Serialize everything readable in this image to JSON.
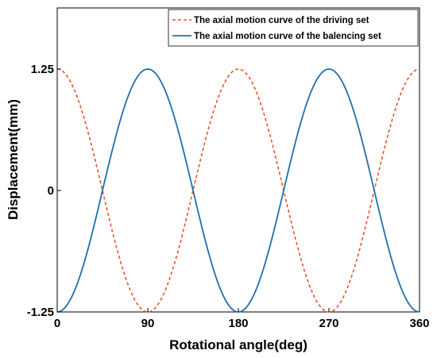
{
  "chart_data": {
    "type": "line",
    "xlabel": "Rotational angle(deg)",
    "ylabel": "Displacement(mm)",
    "xlim": [
      0,
      360
    ],
    "ylim": [
      -1.25,
      1.25
    ],
    "x_ticks": [
      "0",
      "90",
      "180",
      "270",
      "360"
    ],
    "y_ticks": [
      "-1.25",
      "0",
      "1.25"
    ],
    "legend_position": "top-right",
    "grid": false,
    "series": [
      {
        "name": "The axial motion curve of the driving set",
        "color": "#e8572a",
        "style": "dashed",
        "x": [
          0,
          45,
          90,
          135,
          180,
          225,
          270,
          315,
          360
        ],
        "y": [
          1.25,
          0,
          -1.25,
          0,
          1.25,
          0,
          -1.25,
          0,
          1.25
        ]
      },
      {
        "name": "The axial motion curve of the balencing set",
        "color": "#1f6fb0",
        "style": "solid",
        "x": [
          0,
          45,
          90,
          135,
          180,
          225,
          270,
          315,
          360
        ],
        "y": [
          -1.25,
          0,
          1.25,
          0,
          -1.25,
          0,
          1.25,
          0,
          -1.25
        ]
      }
    ]
  }
}
